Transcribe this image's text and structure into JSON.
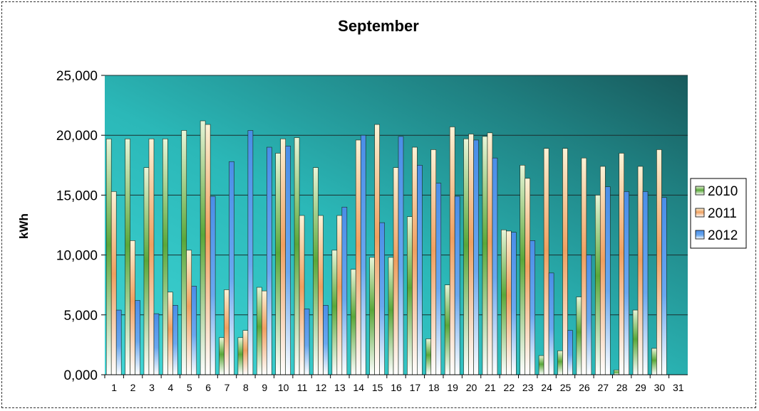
{
  "chart_data": {
    "type": "bar",
    "title": "September",
    "xlabel": "",
    "ylabel": "kWh",
    "ylim": [
      0,
      25000
    ],
    "yticks": [
      "0,000",
      "5,000",
      "10,000",
      "15,000",
      "20,000",
      "25,000"
    ],
    "grid": true,
    "legend_position": "right",
    "categories": [
      "1",
      "2",
      "3",
      "4",
      "5",
      "6",
      "7",
      "8",
      "9",
      "10",
      "11",
      "12",
      "13",
      "14",
      "15",
      "16",
      "17",
      "18",
      "19",
      "20",
      "21",
      "22",
      "23",
      "24",
      "25",
      "26",
      "27",
      "28",
      "29",
      "30",
      "31"
    ],
    "series": [
      {
        "name": "2010",
        "color": "#5aa83a",
        "values": [
          19700,
          19700,
          17300,
          19700,
          20400,
          21200,
          3100,
          3100,
          7300,
          18500,
          19800,
          17300,
          10400,
          8800,
          9800,
          9800,
          13200,
          3000,
          7500,
          19700,
          19900,
          12100,
          17500,
          1600,
          2000,
          6500,
          15000,
          400,
          5400,
          2200,
          0
        ]
      },
      {
        "name": "2011",
        "color": "#f0a060",
        "values": [
          15300,
          11200,
          19700,
          6900,
          10400,
          20900,
          7100,
          3700,
          7000,
          19700,
          13300,
          13300,
          13300,
          19600,
          20900,
          17300,
          19000,
          18800,
          20700,
          20100,
          20200,
          12000,
          16400,
          18900,
          18900,
          18100,
          17400,
          18500,
          17400,
          18800,
          0
        ]
      },
      {
        "name": "2012",
        "color": "#4a8ee8",
        "values": [
          5400,
          6200,
          5100,
          5800,
          7400,
          14900,
          17800,
          20400,
          19000,
          19100,
          5500,
          5800,
          14000,
          20000,
          12700,
          19900,
          17500,
          16000,
          14900,
          19600,
          18100,
          11900,
          11200,
          8500,
          3700,
          10000,
          15700,
          15300,
          15300,
          14800,
          0
        ]
      }
    ]
  }
}
